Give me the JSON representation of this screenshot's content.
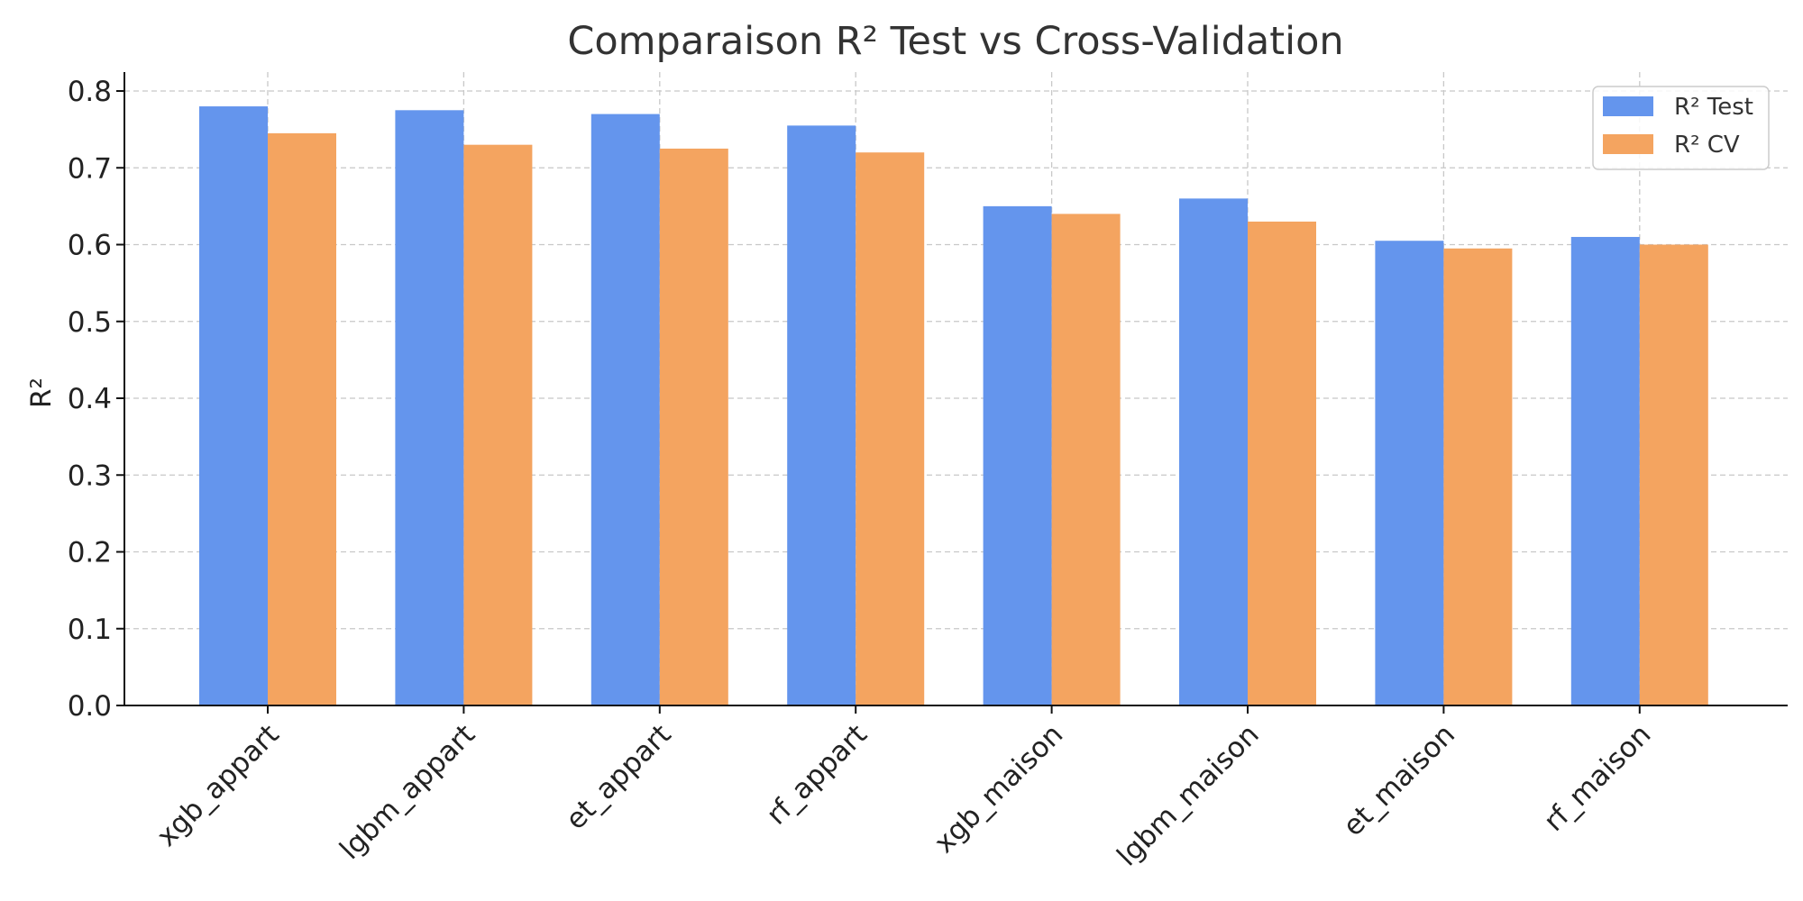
{
  "chart_data": {
    "type": "bar",
    "title": "Comparaison R² Test vs Cross-Validation",
    "xlabel": "",
    "ylabel": "R²",
    "ylim": [
      0,
      0.82
    ],
    "yticks": [
      "0.0",
      "0.1",
      "0.2",
      "0.3",
      "0.4",
      "0.5",
      "0.6",
      "0.7",
      "0.8"
    ],
    "grid": true,
    "legend_position": "top-right",
    "categories": [
      "xgb_appart",
      "lgbm_appart",
      "et_appart",
      "rf_appart",
      "xgb_maison",
      "lgbm_maison",
      "et_maison",
      "rf_maison"
    ],
    "series": [
      {
        "name": "R² Test",
        "color": "#6495ED",
        "values": [
          0.78,
          0.775,
          0.77,
          0.755,
          0.65,
          0.66,
          0.605,
          0.61
        ]
      },
      {
        "name": "R² CV",
        "color": "#F4A460",
        "values": [
          0.745,
          0.73,
          0.725,
          0.72,
          0.64,
          0.63,
          0.595,
          0.6
        ]
      }
    ]
  }
}
